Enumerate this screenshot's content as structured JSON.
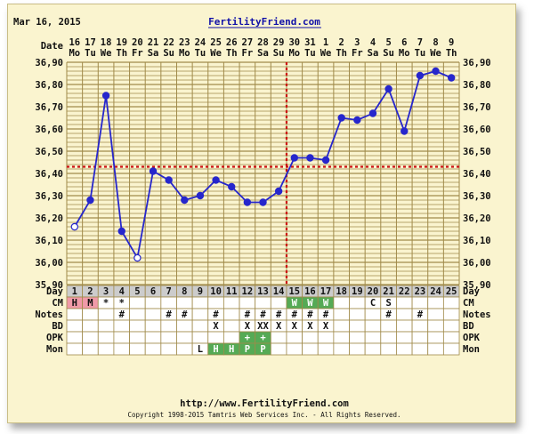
{
  "header": {
    "date": "Mar 16, 2015",
    "brand": "FertilityFriend.com"
  },
  "footer": {
    "url": "http://www.FertilityFriend.com",
    "copyright": "Copyright 1998-2015 Tamtris Web Services Inc. - All Rights Reserved."
  },
  "colors": {
    "line": "#2626cc",
    "grid": "#a08a4a",
    "coverline": "#cc1111",
    "cycle_day_bg": "#cccccc",
    "menstruation": "#f09aa8",
    "positive": "#55aa55",
    "background": "#faf4cf"
  },
  "chart_data": {
    "type": "line",
    "title": "",
    "xlabel": "Date",
    "ylabel": "",
    "ylim": [
      35.9,
      36.9
    ],
    "y_ticks": [
      "35,90",
      "36,00",
      "36,10",
      "36,20",
      "36,30",
      "36,40",
      "36,50",
      "36,60",
      "36,70",
      "36,80",
      "36,90"
    ],
    "dates": [
      "16",
      "17",
      "18",
      "19",
      "20",
      "21",
      "22",
      "23",
      "24",
      "25",
      "26",
      "27",
      "28",
      "29",
      "30",
      "31",
      "1",
      "2",
      "3",
      "4",
      "5",
      "6",
      "7",
      "8",
      "9"
    ],
    "weekdays": [
      "Mo",
      "Tu",
      "We",
      "Th",
      "Fr",
      "Sa",
      "Su",
      "Mo",
      "Tu",
      "We",
      "Th",
      "Fr",
      "Sa",
      "Su",
      "Mo",
      "Tu",
      "We",
      "Th",
      "Fr",
      "Sa",
      "Su",
      "Mo",
      "Tu",
      "We",
      "Th"
    ],
    "cycle_days": [
      "1",
      "2",
      "3",
      "4",
      "5",
      "6",
      "7",
      "8",
      "9",
      "10",
      "11",
      "12",
      "13",
      "14",
      "15",
      "16",
      "17",
      "18",
      "19",
      "20",
      "21",
      "22",
      "23",
      "24",
      "25"
    ],
    "series": [
      {
        "values": [
          36.16,
          36.28,
          36.75,
          36.14,
          36.02,
          36.41,
          36.37,
          36.28,
          36.3,
          36.37,
          36.34,
          36.27,
          36.27,
          36.32,
          36.47,
          36.47,
          36.46,
          36.65,
          36.64,
          36.67,
          36.78,
          36.59,
          36.84,
          36.86,
          36.83
        ],
        "open_points": [
          0,
          4
        ]
      }
    ],
    "coverline": 36.43,
    "ovulation_day": 14,
    "grid": true
  },
  "rows": [
    {
      "label": "Day",
      "cells": [
        "1",
        "2",
        "3",
        "4",
        "5",
        "6",
        "7",
        "8",
        "9",
        "10",
        "11",
        "12",
        "13",
        "14",
        "15",
        "16",
        "17",
        "18",
        "19",
        "20",
        "21",
        "22",
        "23",
        "24",
        "25"
      ]
    },
    {
      "label": "CM",
      "cells": [
        "H",
        "M",
        "*",
        "*",
        "",
        "",
        "",
        "",
        "",
        "",
        "",
        "",
        "",
        "",
        "W",
        "W",
        "W",
        "",
        "",
        "C",
        "S",
        "",
        "",
        "",
        ""
      ]
    },
    {
      "label": "Notes",
      "cells": [
        "",
        "",
        "",
        "#",
        "",
        "",
        "#",
        "#",
        "",
        "#",
        "",
        "#",
        "#",
        "#",
        "#",
        "#",
        "#",
        "",
        "",
        "",
        "#",
        "",
        "#",
        "",
        ""
      ]
    },
    {
      "label": "BD",
      "cells": [
        "",
        "",
        "",
        "",
        "",
        "",
        "",
        "",
        "",
        "X",
        "",
        "X",
        "XX",
        "X",
        "X",
        "X",
        "X",
        "",
        "",
        "",
        "",
        "",
        "",
        "",
        ""
      ]
    },
    {
      "label": "OPK",
      "cells": [
        "",
        "",
        "",
        "",
        "",
        "",
        "",
        "",
        "",
        "",
        "",
        "+",
        "+",
        "",
        "",
        "",
        "",
        "",
        "",
        "",
        "",
        "",
        "",
        "",
        ""
      ]
    },
    {
      "label": "Mon",
      "cells": [
        "",
        "",
        "",
        "",
        "",
        "",
        "",
        "",
        "L",
        "H",
        "H",
        "P",
        "P",
        "",
        "",
        "",
        "",
        "",
        "",
        "",
        "",
        "",
        "",
        "",
        ""
      ]
    }
  ],
  "labels": {
    "date_row": "Date",
    "day_row": "Day",
    "cm_row": "CM",
    "notes_row": "Notes",
    "bd_row": "BD",
    "opk_row": "OPK",
    "mon_row": "Mon"
  }
}
